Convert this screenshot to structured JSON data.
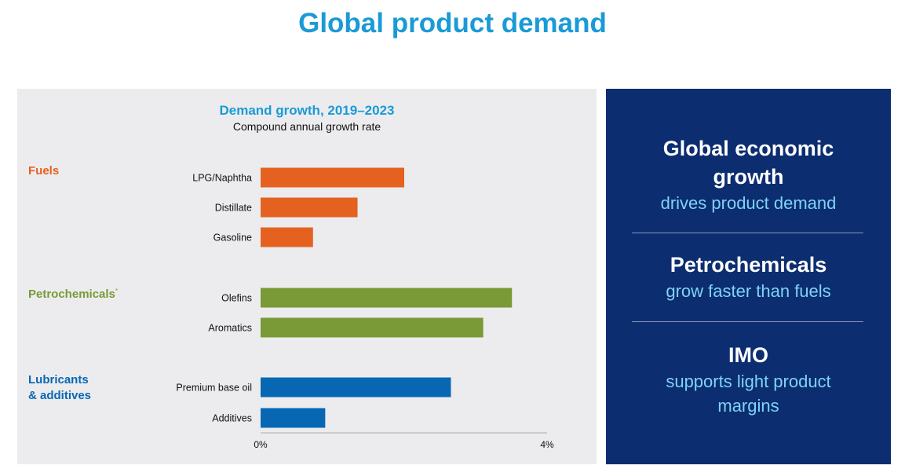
{
  "page": {
    "title": "Global product demand"
  },
  "chart_data": {
    "type": "bar",
    "orientation": "horizontal",
    "title": "Demand growth, 2019–2023",
    "subtitle": "Compound annual growth rate",
    "xlim": [
      0,
      4
    ],
    "x_ticks": [
      "0%",
      "4%"
    ],
    "groups": [
      {
        "name": "Fuels",
        "footnote": "",
        "color": "#e46120",
        "categories": [
          "LPG/Naphtha",
          "Distillate",
          "Gasoline"
        ],
        "values": [
          2.0,
          1.35,
          0.73
        ]
      },
      {
        "name": "Petrochemicals",
        "footnote": "*",
        "color": "#799a36",
        "categories": [
          "Olefins",
          "Aromatics"
        ],
        "values": [
          3.5,
          3.1
        ]
      },
      {
        "name_line1": "Lubricants",
        "name_line2": "& additives",
        "footnote": "",
        "color": "#0867b3",
        "categories": [
          "Premium base oil",
          "Additives"
        ],
        "values": [
          2.65,
          0.9
        ]
      }
    ]
  },
  "sidebar": {
    "blocks": [
      {
        "head_line1": "Global economic",
        "head_line2": "growth",
        "sub_line1": "drives product demand",
        "sub_line2": ""
      },
      {
        "head_line1": "Petrochemicals",
        "head_line2": "",
        "sub_line1": "grow faster than fuels",
        "sub_line2": ""
      },
      {
        "head_line1": "IMO",
        "head_line2": "",
        "sub_line1": "supports light product",
        "sub_line2": "margins"
      }
    ]
  }
}
